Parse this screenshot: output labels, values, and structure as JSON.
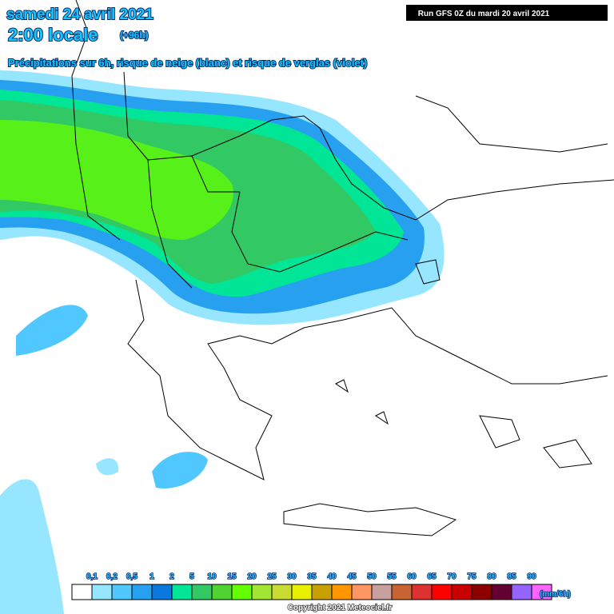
{
  "header": {
    "date": "samedi 24 avril 2021",
    "time": "2:00 locale",
    "lead": "(+96h)",
    "subtitle": "Précipitations sur 6h, risque de neige (blanc) et risque de verglas (violet)",
    "run": "Run GFS 0Z du mardi 20 avril 2021"
  },
  "legend": {
    "labels": [
      "0,1",
      "0,2",
      "0,5",
      "1",
      "2",
      "5",
      "10",
      "15",
      "20",
      "25",
      "30",
      "35",
      "40",
      "45",
      "50",
      "55",
      "60",
      "65",
      "70",
      "75",
      "80",
      "85",
      "90"
    ],
    "colors": [
      "#ffffff",
      "#96e6ff",
      "#50c8ff",
      "#28a0f0",
      "#0a78dc",
      "#00e696",
      "#32c864",
      "#50d232",
      "#64ff00",
      "#a0e632",
      "#c8dc32",
      "#e6f000",
      "#c8a000",
      "#ff9600",
      "#ff9664",
      "#c8a0a0",
      "#c86432",
      "#dc3232",
      "#ff0000",
      "#c80000",
      "#8c0000",
      "#640032",
      "#9664ff",
      "#ff64ff"
    ],
    "unit": "(mm/6h)"
  },
  "footer": {
    "copyright": "Copyright 2021 Meteociel.fr"
  }
}
